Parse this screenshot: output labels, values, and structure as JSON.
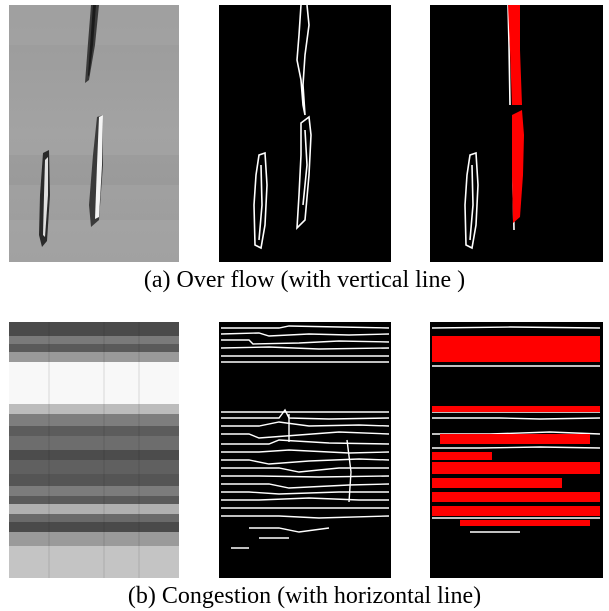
{
  "figure": {
    "row_a": {
      "caption": "(a) Over flow (with vertical line )",
      "panels": [
        {
          "name": "original-grayscale-image"
        },
        {
          "name": "edge-detection-image"
        },
        {
          "name": "detected-lines-overlay-image"
        }
      ]
    },
    "row_b": {
      "caption": "(b) Congestion (with horizontal line)",
      "panels": [
        {
          "name": "original-grayscale-image"
        },
        {
          "name": "edge-detection-image"
        },
        {
          "name": "detected-lines-overlay-image"
        }
      ]
    },
    "colors": {
      "background": "#000000",
      "edge": "#ffffff",
      "detected_line": "#ff0000"
    }
  }
}
